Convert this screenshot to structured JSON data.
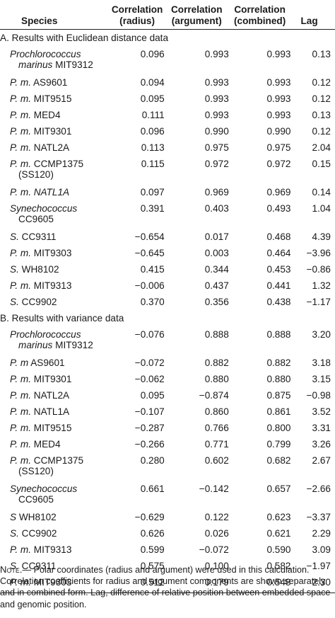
{
  "header": {
    "species": "Species",
    "radius": "Correlation (radius)",
    "radius_l1": "Correlation",
    "radius_l2": "(radius)",
    "argument_l1": "Correlation",
    "argument_l2": "(argument)",
    "combined_l1": "Correlation",
    "combined_l2": "(combined)",
    "lag": "Lag"
  },
  "sections": [
    {
      "title": "A. Results with Euclidean distance data",
      "rows": [
        {
          "sp1": "Prochlorococcus",
          "sp1_italic": true,
          "sp2_italic": "marinus",
          "sp2_rest": " MIT9312",
          "radius": "0.096",
          "argument": "0.993",
          "combined": "0.993",
          "lag": "0.13"
        },
        {
          "sp_it": "P. m.",
          "sp_rest": " AS9601",
          "radius": "0.094",
          "argument": "0.993",
          "combined": "0.993",
          "lag": "0.12"
        },
        {
          "sp_it": "P. m.",
          "sp_rest": " MIT9515",
          "radius": "0.095",
          "argument": "0.993",
          "combined": "0.993",
          "lag": "0.12"
        },
        {
          "sp_it": "P. m.",
          "sp_rest": " MED4",
          "radius": "0.111",
          "argument": "0.993",
          "combined": "0.993",
          "lag": "0.13"
        },
        {
          "sp_it": "P. m.",
          "sp_rest": " MIT9301",
          "radius": "0.096",
          "argument": "0.990",
          "combined": "0.990",
          "lag": "0.12"
        },
        {
          "sp_it": "P. m.",
          "sp_rest": " NATL2A",
          "radius": "0.113",
          "argument": "0.975",
          "combined": "0.975",
          "lag": "2.04"
        },
        {
          "sp_it": "P. m.",
          "sp_rest": " CCMP1375",
          "sp_l2": "(SS120)",
          "radius": "0.115",
          "argument": "0.972",
          "combined": "0.972",
          "lag": "0.15"
        },
        {
          "sp_it": "P. m. NATL1A",
          "sp_rest": "",
          "radius": "0.097",
          "argument": "0.969",
          "combined": "0.969",
          "lag": "0.14"
        },
        {
          "sp1": "Synechococcus",
          "sp1_italic": true,
          "sp2_italic": "",
          "sp2_rest": "CC9605",
          "radius": "0.391",
          "argument": "0.403",
          "combined": "0.493",
          "lag": "1.04"
        },
        {
          "sp_it": "S.",
          "sp_rest": " CC9311",
          "radius": "−0.654",
          "argument": "0.017",
          "combined": "0.468",
          "lag": "4.39"
        },
        {
          "sp_it": "P. m.",
          "sp_rest": " MIT9303",
          "radius": "−0.645",
          "argument": "0.003",
          "combined": "0.464",
          "lag": "−3.96"
        },
        {
          "sp_it": "S.",
          "sp_rest": " WH8102",
          "radius": "0.415",
          "argument": "0.344",
          "combined": "0.453",
          "lag": "−0.86"
        },
        {
          "sp_it": "P. m.",
          "sp_rest": " MIT9313",
          "radius": "−0.006",
          "argument": "0.437",
          "combined": "0.441",
          "lag": "1.32"
        },
        {
          "sp_it": "S.",
          "sp_rest": " CC9902",
          "radius": "0.370",
          "argument": "0.356",
          "combined": "0.438",
          "lag": "−1.17"
        }
      ]
    },
    {
      "title": "B. Results with variance data",
      "rows": [
        {
          "sp1": "Prochlorococcus",
          "sp1_italic": true,
          "sp2_italic": "marinus",
          "sp2_rest": " MIT9312",
          "radius": "−0.076",
          "argument": "0.888",
          "combined": "0.888",
          "lag": "3.20"
        },
        {
          "sp_it": "P. m",
          "sp_rest": " AS9601",
          "radius": "−0.072",
          "argument": "0.882",
          "combined": "0.882",
          "lag": "3.18"
        },
        {
          "sp_it": "P. m.",
          "sp_rest": " MIT9301",
          "radius": "−0.062",
          "argument": "0.880",
          "combined": "0.880",
          "lag": "3.15"
        },
        {
          "sp_it": "P. m.",
          "sp_rest": " NATL2A",
          "radius": "0.095",
          "argument": "−0.874",
          "combined": "0.875",
          "lag": "−0.98"
        },
        {
          "sp_it": "P. m.",
          "sp_rest": " NATL1A",
          "radius": "−0.107",
          "argument": "0.860",
          "combined": "0.861",
          "lag": "3.52"
        },
        {
          "sp_it": "P. m.",
          "sp_rest": " MIT9515",
          "radius": "−0.287",
          "argument": "0.766",
          "combined": "0.800",
          "lag": "3.31"
        },
        {
          "sp_it": "P. m.",
          "sp_rest": " MED4",
          "radius": "−0.266",
          "argument": "0.771",
          "combined": "0.799",
          "lag": "3.26"
        },
        {
          "sp_it": "P. m.",
          "sp_rest": " CCMP1375",
          "sp_l2": "(SS120)",
          "radius": "0.280",
          "argument": "0.602",
          "combined": "0.682",
          "lag": "2.67"
        },
        {
          "sp1": "Synechococcus",
          "sp1_italic": true,
          "sp2_italic": "",
          "sp2_rest": "CC9605",
          "radius": "0.661",
          "argument": "−0.142",
          "combined": "0.657",
          "lag": "−2.66"
        },
        {
          "sp_it": "S",
          "sp_rest": " WH8102",
          "radius": "−0.629",
          "argument": "0.122",
          "combined": "0.623",
          "lag": "−3.37"
        },
        {
          "sp_it": "S.",
          "sp_rest": " CC9902",
          "radius": "0.626",
          "argument": "0.026",
          "combined": "0.621",
          "lag": "2.29"
        },
        {
          "sp_it": "P. m.",
          "sp_rest": " MIT9313",
          "radius": "0.599",
          "argument": "−0.072",
          "combined": "0.590",
          "lag": "3.09"
        },
        {
          "sp_it": "S.",
          "sp_rest": " CC9311",
          "radius": "0.575",
          "argument": "0.100",
          "combined": "0.582",
          "lag": "−1.97"
        },
        {
          "sp_it": "P. m.",
          "sp_rest": " MIT9303",
          "radius": "0.512",
          "argument": "0.179",
          "combined": "0.548",
          "lag": "2.30"
        }
      ]
    }
  ],
  "note": {
    "label": "Note.",
    "lines": [
      "— Polar coordinates (radius and argument) were used in this calculation.",
      "Correlation coefficients for radius and argument components are shown separately",
      "and in combined form. Lag, difference of relative position between embedded space",
      "and genomic position."
    ]
  }
}
